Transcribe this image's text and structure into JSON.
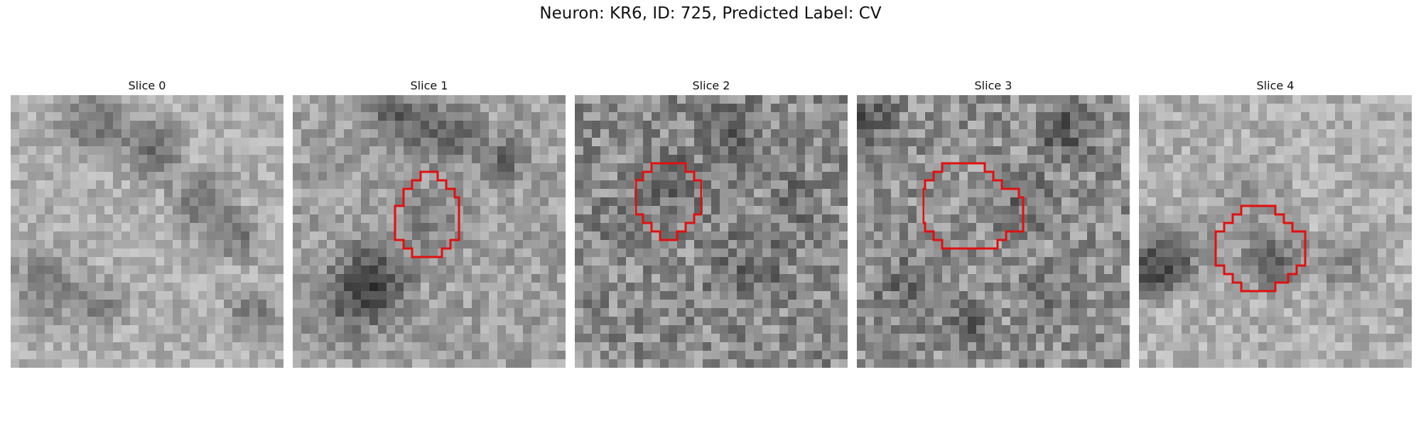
{
  "figure": {
    "title": "Neuron: KR6, ID: 725, Predicted Label: CV",
    "outline_color": "#e01010"
  },
  "panels": [
    {
      "label": "Slice 0",
      "outline": false
    },
    {
      "label": "Slice 1",
      "outline": true
    },
    {
      "label": "Slice 2",
      "outline": true
    },
    {
      "label": "Slice 3",
      "outline": true
    },
    {
      "label": "Slice 4",
      "outline": true
    }
  ]
}
